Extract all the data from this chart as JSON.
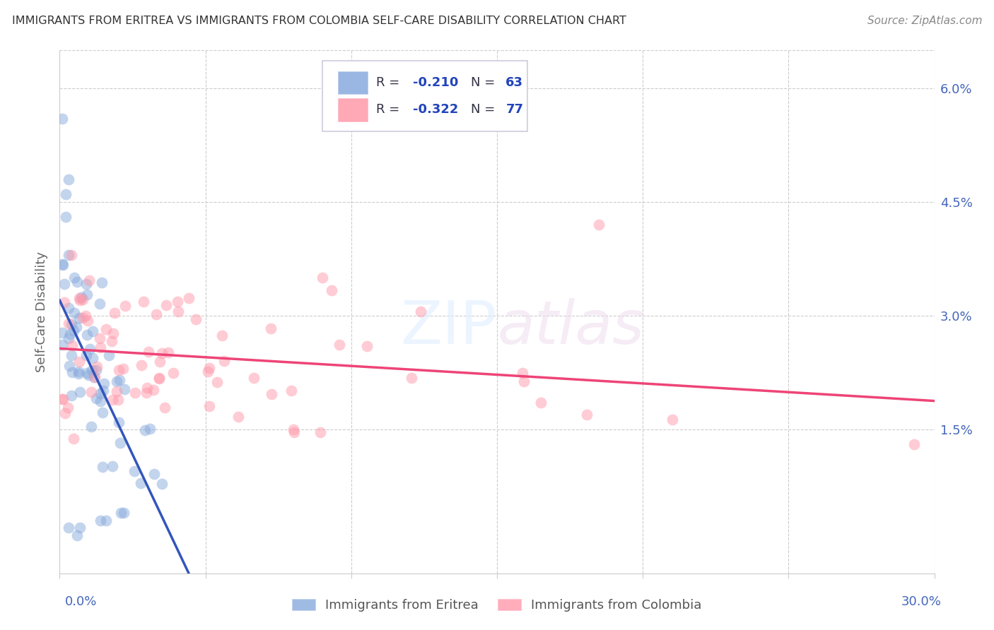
{
  "title": "IMMIGRANTS FROM ERITREA VS IMMIGRANTS FROM COLOMBIA SELF-CARE DISABILITY CORRELATION CHART",
  "source": "Source: ZipAtlas.com",
  "ylabel": "Self-Care Disability",
  "xlim": [
    0.0,
    0.3
  ],
  "ylim": [
    -0.004,
    0.065
  ],
  "watermark": "ZIPatlas",
  "blue_color": "#88AADD",
  "pink_color": "#FF99AA",
  "blue_line_color": "#3355BB",
  "pink_line_color": "#EE4477",
  "blue_dash_color": "#AABBDD",
  "title_color": "#333333",
  "axis_color": "#4466BB",
  "grid_color": "#CCCCCC",
  "legend_text_color": "#333344",
  "legend_value_color": "#2244BB",
  "ytick_vals": [
    0.0,
    0.015,
    0.03,
    0.045,
    0.06
  ],
  "ytick_labels": [
    "",
    "1.5%",
    "3.0%",
    "4.5%",
    "6.0%"
  ],
  "xtick_vals": [
    0.0,
    0.05,
    0.1,
    0.15,
    0.2,
    0.25,
    0.3
  ]
}
